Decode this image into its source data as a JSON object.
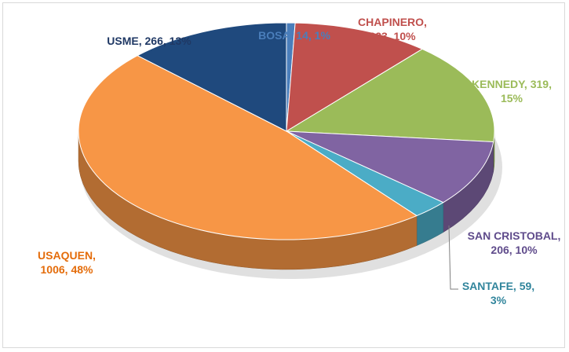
{
  "chart_data": {
    "type": "pie",
    "title": "",
    "series": [
      {
        "name": "BOSA",
        "value": 14,
        "percent": "1%",
        "color": "#4a7ebb",
        "label_color": "#4a7ebb",
        "label_lines": [
          "BOSA, 14, 1%"
        ]
      },
      {
        "name": "CHAPINERO",
        "value": 223,
        "percent": "10%",
        "color": "#c0504d",
        "label_color": "#c0504d",
        "label_lines": [
          "CHAPINERO,",
          "223, 10%"
        ]
      },
      {
        "name": "KENNEDY",
        "value": 319,
        "percent": "15%",
        "color": "#9bbb59",
        "label_color": "#9bbb59",
        "label_lines": [
          "KENNEDY, 319,",
          "15%"
        ]
      },
      {
        "name": "SAN CRISTOBAL",
        "value": 206,
        "percent": "10%",
        "color": "#8064a2",
        "label_color": "#5f4b8b",
        "label_lines": [
          "SAN CRISTOBAL,",
          "206, 10%"
        ]
      },
      {
        "name": "SANTAFE",
        "value": 59,
        "percent": "3%",
        "color": "#4bacc6",
        "label_color": "#31859c",
        "label_lines": [
          "SANTAFE, 59,",
          "3%"
        ]
      },
      {
        "name": "USAQUEN",
        "value": 1006,
        "percent": "48%",
        "color": "#f79646",
        "label_color": "#e46c0a",
        "label_lines": [
          "USAQUEN,",
          "1006, 48%"
        ]
      },
      {
        "name": "USME",
        "value": 266,
        "percent": "13%",
        "color": "#1f497d",
        "label_color": "#1f3864",
        "label_lines": [
          "USME, 266, 13%"
        ]
      }
    ],
    "legend": "none",
    "style": "3d-pie"
  }
}
